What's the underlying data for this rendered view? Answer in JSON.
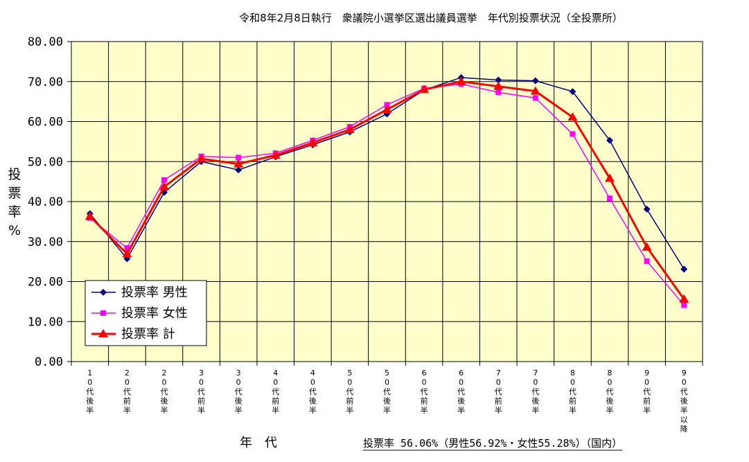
{
  "chart_data": {
    "type": "line",
    "title": "令和8年2月8日執行　衆議院小選挙区選出議員選挙　年代別投票状況（全投票所）",
    "ylabel": "投票率%",
    "xlabel": "年　代",
    "footer": "投票率 56.06%（男性56.92%・女性55.28%）（国内）",
    "ylim": [
      0,
      80
    ],
    "y_ticks": [
      "0.00",
      "10.00",
      "20.00",
      "30.00",
      "40.00",
      "50.00",
      "60.00",
      "70.00",
      "80.00"
    ],
    "categories": [
      "10代後半",
      "20代前半",
      "20代後半",
      "30代前半",
      "30代後半",
      "40代前半",
      "40代後半",
      "50代前半",
      "50代後半",
      "60代前半",
      "60代後半",
      "70代前半",
      "70代後半",
      "80代前半",
      "80代後半",
      "90代前半",
      "90代後半以降"
    ],
    "series": [
      {
        "name": "投票率 男性",
        "color": "#000080",
        "marker": "diamond",
        "values": [
          37.0,
          25.7,
          42.3,
          50.0,
          47.9,
          51.2,
          54.2,
          57.4,
          61.9,
          67.9,
          71.0,
          70.4,
          70.2,
          67.5,
          55.3,
          38.1,
          23.1
        ]
      },
      {
        "name": "投票率 女性",
        "color": "#ff00ff",
        "marker": "square",
        "values": [
          35.9,
          28.4,
          45.4,
          51.3,
          51.0,
          52.1,
          55.3,
          58.7,
          64.2,
          68.3,
          69.4,
          67.3,
          65.9,
          56.9,
          40.8,
          25.1,
          14.1
        ]
      },
      {
        "name": "投票率 計",
        "color": "#ff0000",
        "marker": "triangle",
        "values": [
          36.3,
          26.9,
          43.7,
          50.7,
          49.4,
          51.6,
          54.7,
          58.0,
          63.0,
          68.0,
          70.0,
          68.8,
          67.6,
          61.1,
          45.8,
          28.6,
          15.6
        ]
      }
    ],
    "legend_position": "bottom-left",
    "grid": true
  }
}
